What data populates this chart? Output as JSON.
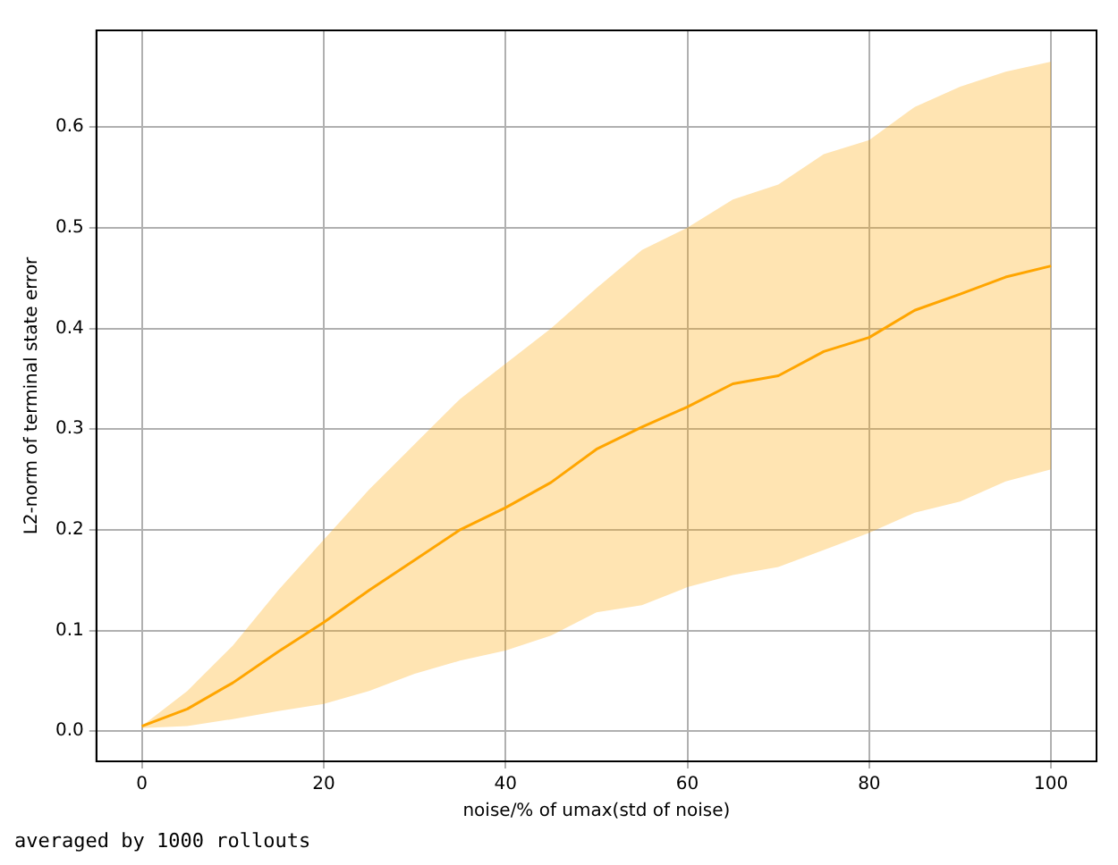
{
  "chart_data": {
    "type": "line",
    "xlabel": "noise/% of umax(std of noise)",
    "ylabel": "L2-norm of terminal state error",
    "x": [
      0,
      5,
      10,
      15,
      20,
      25,
      30,
      35,
      40,
      45,
      50,
      55,
      60,
      65,
      70,
      75,
      80,
      85,
      90,
      95,
      100
    ],
    "series": [
      {
        "color": "#ffa500",
        "values": [
          0.005,
          0.022,
          0.048,
          0.079,
          0.108,
          0.14,
          0.17,
          0.2,
          0.222,
          0.247,
          0.28,
          0.302,
          0.322,
          0.345,
          0.353,
          0.377,
          0.391,
          0.418,
          0.434,
          0.451,
          0.462
        ],
        "lower": [
          0.003,
          0.005,
          0.012,
          0.02,
          0.027,
          0.04,
          0.057,
          0.07,
          0.08,
          0.095,
          0.118,
          0.125,
          0.143,
          0.155,
          0.163,
          0.18,
          0.197,
          0.217,
          0.228,
          0.248,
          0.26
        ],
        "upper": [
          0.005,
          0.04,
          0.085,
          0.14,
          0.19,
          0.24,
          0.285,
          0.33,
          0.365,
          0.4,
          0.44,
          0.478,
          0.5,
          0.528,
          0.543,
          0.573,
          0.587,
          0.62,
          0.64,
          0.655,
          0.665
        ]
      }
    ],
    "xlim": [
      -5,
      105
    ],
    "xticks": [
      0,
      20,
      40,
      60,
      80,
      100
    ],
    "ylim": [
      -0.03,
      0.696
    ],
    "yticks": [
      {
        "value": 0,
        "label": "0.0"
      },
      0.1,
      0.2,
      0.3,
      0.4,
      0.5,
      0.6
    ],
    "grid": true,
    "legend": false,
    "marker": "none",
    "line_style": "solid",
    "annotations": [
      "averaged by 1000 rollouts"
    ]
  }
}
